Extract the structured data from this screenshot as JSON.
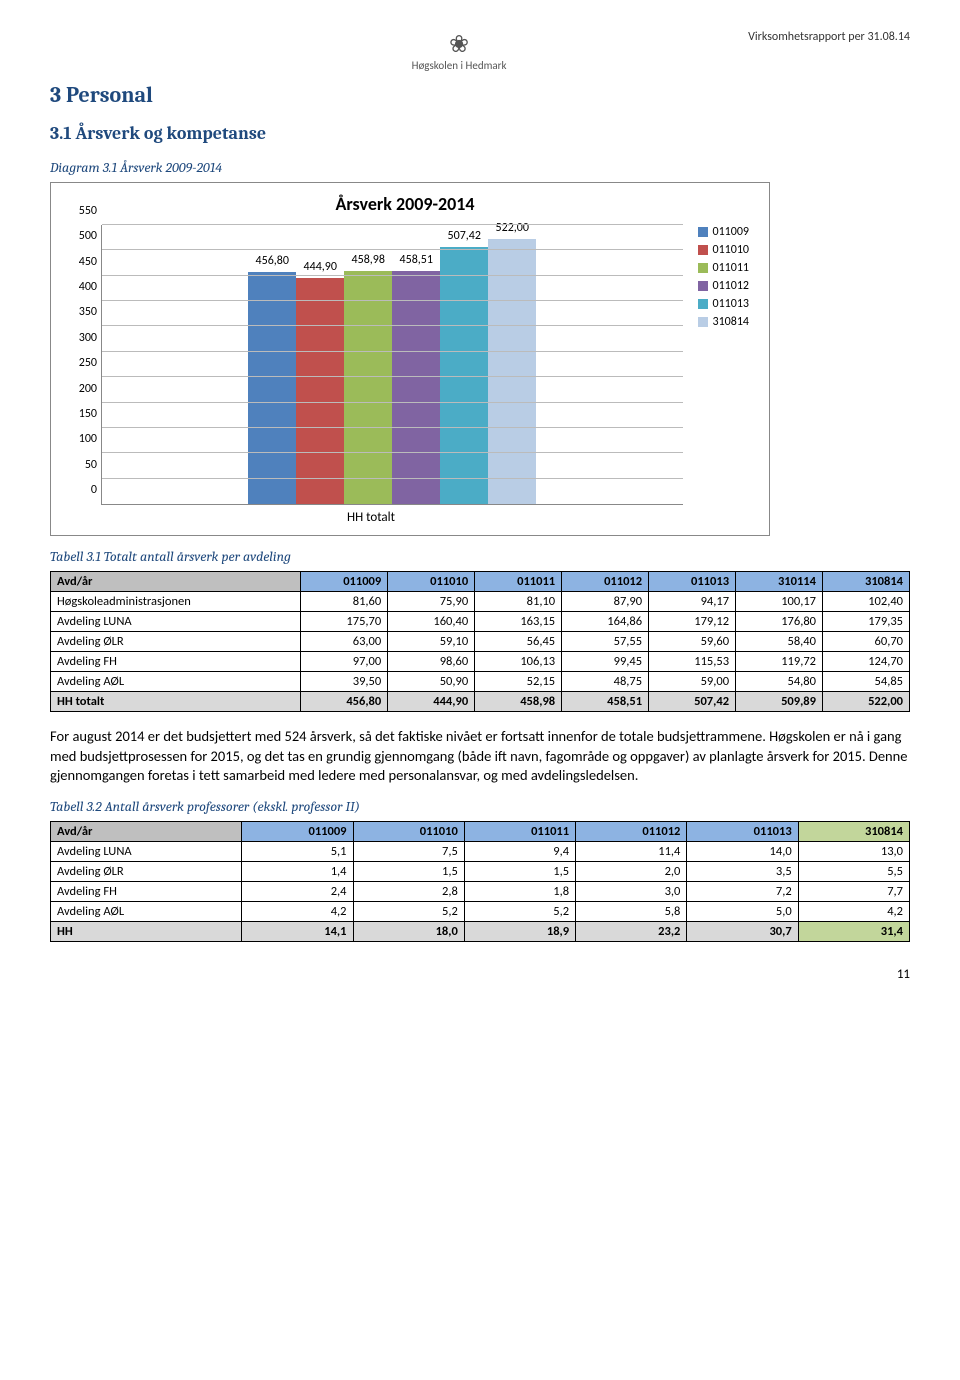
{
  "header": {
    "logo_text": "Høgskolen i Hedmark",
    "report_date": "Virksomhetsrapport per 31.08.14"
  },
  "section_heading": "3   Personal",
  "subsection_heading": "3.1   Årsverk og kompetanse",
  "chart_caption": "Diagram 3.1 Årsverk 2009-2014",
  "chart": {
    "title": "Årsverk 2009-2014",
    "y_ticks": [
      0,
      50,
      100,
      150,
      200,
      250,
      300,
      350,
      400,
      450,
      500,
      550
    ],
    "y_max": 550,
    "x_label": "HH totalt",
    "series": [
      {
        "label": "011009",
        "value": 456.8,
        "value_text": "456,80",
        "color": "#4f81bd"
      },
      {
        "label": "011010",
        "value": 444.9,
        "value_text": "444,90",
        "color": "#c0504d"
      },
      {
        "label": "011011",
        "value": 458.98,
        "value_text": "458,98",
        "color": "#9bbb59"
      },
      {
        "label": "011012",
        "value": 458.51,
        "value_text": "458,51",
        "color": "#8064a2"
      },
      {
        "label": "011013",
        "value": 507.42,
        "value_text": "507,42",
        "color": "#4bacc6"
      },
      {
        "label": "310814",
        "value": 522.0,
        "value_text": "522,00",
        "color": "#b9cde5"
      }
    ]
  },
  "table1_caption": "Tabell 3.1 Totalt antall årsverk per avdeling",
  "table1": {
    "header_label": "Avd/år",
    "columns": [
      "011009",
      "011010",
      "011011",
      "011012",
      "011013",
      "310114",
      "310814"
    ],
    "rows": [
      {
        "label": "Høgskoleadministrasjonen",
        "cells": [
          "81,60",
          "75,90",
          "81,10",
          "87,90",
          "94,17",
          "100,17",
          "102,40"
        ]
      },
      {
        "label": "Avdeling LUNA",
        "cells": [
          "175,70",
          "160,40",
          "163,15",
          "164,86",
          "179,12",
          "176,80",
          "179,35"
        ]
      },
      {
        "label": "Avdeling ØLR",
        "cells": [
          "63,00",
          "59,10",
          "56,45",
          "57,55",
          "59,60",
          "58,40",
          "60,70"
        ]
      },
      {
        "label": "Avdeling FH",
        "cells": [
          "97,00",
          "98,60",
          "106,13",
          "99,45",
          "115,53",
          "119,72",
          "124,70"
        ]
      },
      {
        "label": "Avdeling AØL",
        "cells": [
          "39,50",
          "50,90",
          "52,15",
          "48,75",
          "59,00",
          "54,80",
          "54,85"
        ]
      }
    ],
    "total": {
      "label": "HH totalt",
      "cells": [
        "456,80",
        "444,90",
        "458,98",
        "458,51",
        "507,42",
        "509,89",
        "522,00"
      ]
    }
  },
  "paragraph1": "For august 2014 er det budsjettert med 524 årsverk, så det faktiske nivået er fortsatt innenfor de totale budsjettrammene. Høgskolen er nå i gang med budsjettprosessen for 2015, og det tas en grundig gjennomgang (både ift navn, fagområde og oppgaver) av planlagte årsverk for 2015. Denne gjennomgangen foretas i tett samarbeid med ledere med personalansvar, og med avdelingsledelsen.",
  "table2_caption": "Tabell 3.2 Antall årsverk professorer (ekskl. professor II)",
  "table2": {
    "header_label": "Avd/år",
    "columns": [
      "011009",
      "011010",
      "011011",
      "011012",
      "011013",
      "310814"
    ],
    "rows": [
      {
        "label": "Avdeling LUNA",
        "cells": [
          "5,1",
          "7,5",
          "9,4",
          "11,4",
          "14,0",
          "13,0"
        ]
      },
      {
        "label": "Avdeling ØLR",
        "cells": [
          "1,4",
          "1,5",
          "1,5",
          "2,0",
          "3,5",
          "5,5"
        ]
      },
      {
        "label": "Avdeling FH",
        "cells": [
          "2,4",
          "2,8",
          "1,8",
          "3,0",
          "7,2",
          "7,7"
        ]
      },
      {
        "label": "Avdeling AØL",
        "cells": [
          "4,2",
          "5,2",
          "5,2",
          "5,8",
          "5,0",
          "4,2"
        ]
      }
    ],
    "total": {
      "label": "HH",
      "cells": [
        "14,1",
        "18,0",
        "18,9",
        "23,2",
        "30,7",
        "31,4"
      ]
    }
  },
  "page_number": "11"
}
